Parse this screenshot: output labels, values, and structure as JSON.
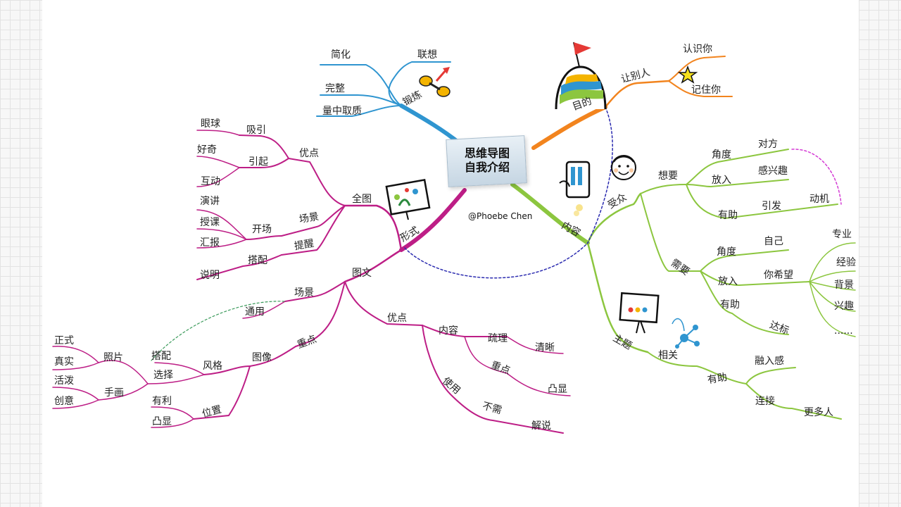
{
  "center": {
    "line1": "思维导图",
    "line2": "自我介绍"
  },
  "credit": "@Phoebe Chen",
  "colors": {
    "blue": "#2f95d0",
    "orange": "#f2841e",
    "green": "#8cc63f",
    "magenta": "#bd1e86",
    "dash_blue": "#2b2bb0",
    "dash_magenta": "#d43ad4",
    "dash_green": "#3a9a5a"
  },
  "branches": {
    "duanlian": {
      "label": "锻炼",
      "children": [
        "联想",
        "简化",
        "完整",
        "量中取质"
      ]
    },
    "mudi": {
      "label": "目的",
      "sub": "让别人",
      "children": [
        "认识你",
        "记住你"
      ]
    },
    "neirong": {
      "label": "内容"
    },
    "shouzhong": {
      "label": "受众",
      "xiangyao": {
        "label": "想要",
        "rows": [
          "角度",
          "对方",
          "放入",
          "感兴趣",
          "有助",
          "引发",
          "动机"
        ]
      },
      "xuyao": {
        "label": "需要",
        "rows": [
          "角度",
          "自己",
          "放入",
          "你希望",
          "有助",
          "达标"
        ],
        "list": [
          "专业",
          "经验",
          "背景",
          "兴趣",
          "......"
        ]
      },
      "zhuti": {
        "label": "主题",
        "related": "相关",
        "helps": "有助",
        "items": [
          "融入感",
          "连接",
          "更多人"
        ]
      }
    },
    "xingshi": {
      "label": "形式",
      "quantu": {
        "label": "全图",
        "youdian": {
          "label": "优点",
          "items": [
            "吸引",
            "眼球",
            "引起",
            "好奇",
            "互动"
          ]
        },
        "changjing": {
          "label": "场景",
          "open": "开场",
          "items": [
            "演讲",
            "授课",
            "汇报"
          ]
        },
        "tixing": {
          "label": "提醒",
          "pair": "搭配",
          "explain": "说明"
        }
      },
      "tuwen": {
        "label": "图文",
        "changjing": {
          "label": "场景",
          "common": "通用"
        },
        "zhongdian": {
          "label": "重点",
          "image": "图像",
          "style": "风格",
          "select": "选择",
          "pair": "搭配",
          "photo": "照片",
          "photo_items": [
            "正式",
            "真实"
          ],
          "hand": "手画",
          "hand_items": [
            "活泼",
            "创意"
          ],
          "pos": "位置",
          "pos_items": [
            "有利",
            "凸显"
          ]
        },
        "youdian": {
          "label": "优点",
          "content": "内容",
          "shuli": "疏理",
          "clear": "清晰",
          "key": "重点",
          "highlight": "凸显",
          "use": "使用",
          "noneed": "不需",
          "explain": "解说"
        }
      }
    }
  }
}
